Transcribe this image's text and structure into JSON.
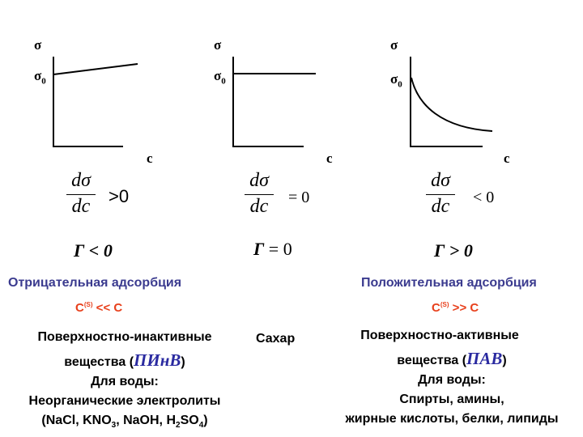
{
  "colors": {
    "axis": "#000000",
    "blue_text": "#3b3b8f",
    "red_text": "#e8401c",
    "abbr": "#2a2aa0"
  },
  "graphs": [
    {
      "y_label": "σ",
      "y0_sub": "0",
      "y0_main": "σ",
      "x_label": "c",
      "curve": "line-rising",
      "derivative": {
        "num": "dσ",
        "den": "dc",
        "relation": ">0"
      },
      "gamma": {
        "symbol": "Г",
        "rest": " < 0"
      }
    },
    {
      "y_label": "σ",
      "y0_sub": "0",
      "y0_main": "σ",
      "x_label": "c",
      "curve": "line-flat",
      "derivative": {
        "num": "dσ",
        "den": "dc",
        "relation": "= 0"
      },
      "gamma": {
        "symbol": "Г",
        "rest": " = 0"
      }
    },
    {
      "y_label": "σ",
      "y0_sub": "0",
      "y0_main": "σ",
      "x_label": "c",
      "curve": "decaying",
      "derivative": {
        "num": "dσ",
        "den": "dc",
        "relation": "< 0"
      },
      "gamma": {
        "symbol": "Г",
        "rest": " > 0"
      }
    }
  ],
  "negative": {
    "title": "Отрицательная адсорбция",
    "ratio_main": "C",
    "ratio_sup": "(S)",
    "ratio_rest": " << C",
    "line1": "Поверхностно-инактивные",
    "line2_pre": "вещества (",
    "abbr": "ПИнВ",
    "line2_post": ")",
    "water": "Для воды:",
    "examples": "Неорганические электролиты",
    "formula_pre": "(NaCl, KNO",
    "formula_sub1": "3",
    "formula_mid": ", NaOH, H",
    "formula_sub2": "2",
    "formula_mid2": "SO",
    "formula_sub3": "4",
    "formula_post": ")"
  },
  "neutral": {
    "label": "Сахар"
  },
  "positive": {
    "title": "Положительная адсорбция",
    "ratio_main": "C",
    "ratio_sup": "(S)",
    "ratio_rest": " >> C",
    "line1": "Поверхностно-активные",
    "line2_pre": "вещества (",
    "abbr": "ПАВ",
    "line2_post": ")",
    "water": "Для воды:",
    "examples": "Спирты, амины,",
    "examples2": "жирные кислоты, белки, липиды"
  }
}
